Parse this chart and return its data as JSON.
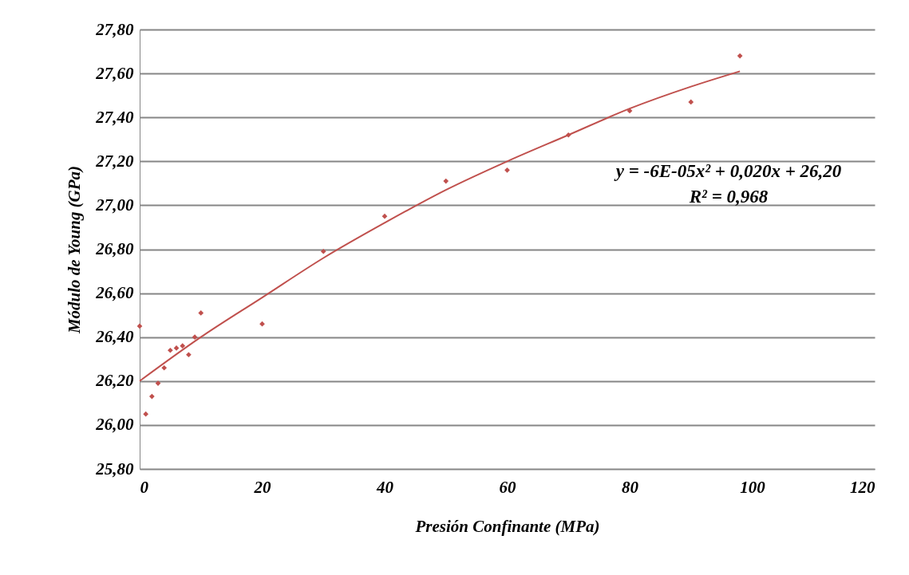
{
  "chart_data": {
    "type": "scatter",
    "xlabel": "Presión Confinante (MPa)",
    "ylabel": "Módulo de Young (GPa)",
    "series": [
      {
        "color": "#c0504d",
        "marker": "diamond",
        "x": [
          0,
          1,
          2,
          3,
          4,
          5,
          6,
          7,
          8,
          9,
          10,
          20,
          30,
          40,
          50,
          60,
          70,
          80,
          90,
          98
        ],
        "values": [
          26.45,
          26.05,
          26.13,
          26.19,
          26.26,
          26.34,
          26.35,
          26.36,
          26.32,
          26.4,
          26.51,
          26.46,
          26.79,
          26.95,
          27.11,
          27.16,
          27.32,
          27.43,
          27.47,
          27.68
        ]
      },
      {
        "type": "line",
        "color": "#c0504d",
        "marker": "none",
        "line_style": "solid",
        "x": [
          0,
          10,
          20,
          30,
          40,
          50,
          60,
          70,
          80,
          90,
          98
        ],
        "values": [
          26.2,
          26.4,
          26.58,
          26.76,
          26.92,
          27.07,
          27.2,
          27.32,
          27.44,
          27.54,
          27.61
        ]
      }
    ],
    "xlim": [
      0,
      120
    ],
    "xticks": [
      0,
      20,
      40,
      60,
      80,
      100,
      120
    ],
    "ylim": [
      25.8,
      27.8
    ],
    "yticks": [
      {
        "value": 25.8,
        "label": "25,80"
      },
      {
        "value": 26.0,
        "label": "26,00"
      },
      {
        "value": 26.2,
        "label": "26,20"
      },
      {
        "value": 26.4,
        "label": "26,40"
      },
      {
        "value": 26.6,
        "label": "26,60"
      },
      {
        "value": 26.8,
        "label": "26,80"
      },
      {
        "value": 27.0,
        "label": "27,00"
      },
      {
        "value": 27.2,
        "label": "27,20"
      },
      {
        "value": 27.4,
        "label": "27,40"
      },
      {
        "value": 27.6,
        "label": "27,60"
      },
      {
        "value": 27.8,
        "label": "27,80"
      }
    ],
    "grid": "y",
    "annotations": [
      "y = -6E-05x² + 0,020x + 26,20",
      "R² = 0,968"
    ]
  }
}
